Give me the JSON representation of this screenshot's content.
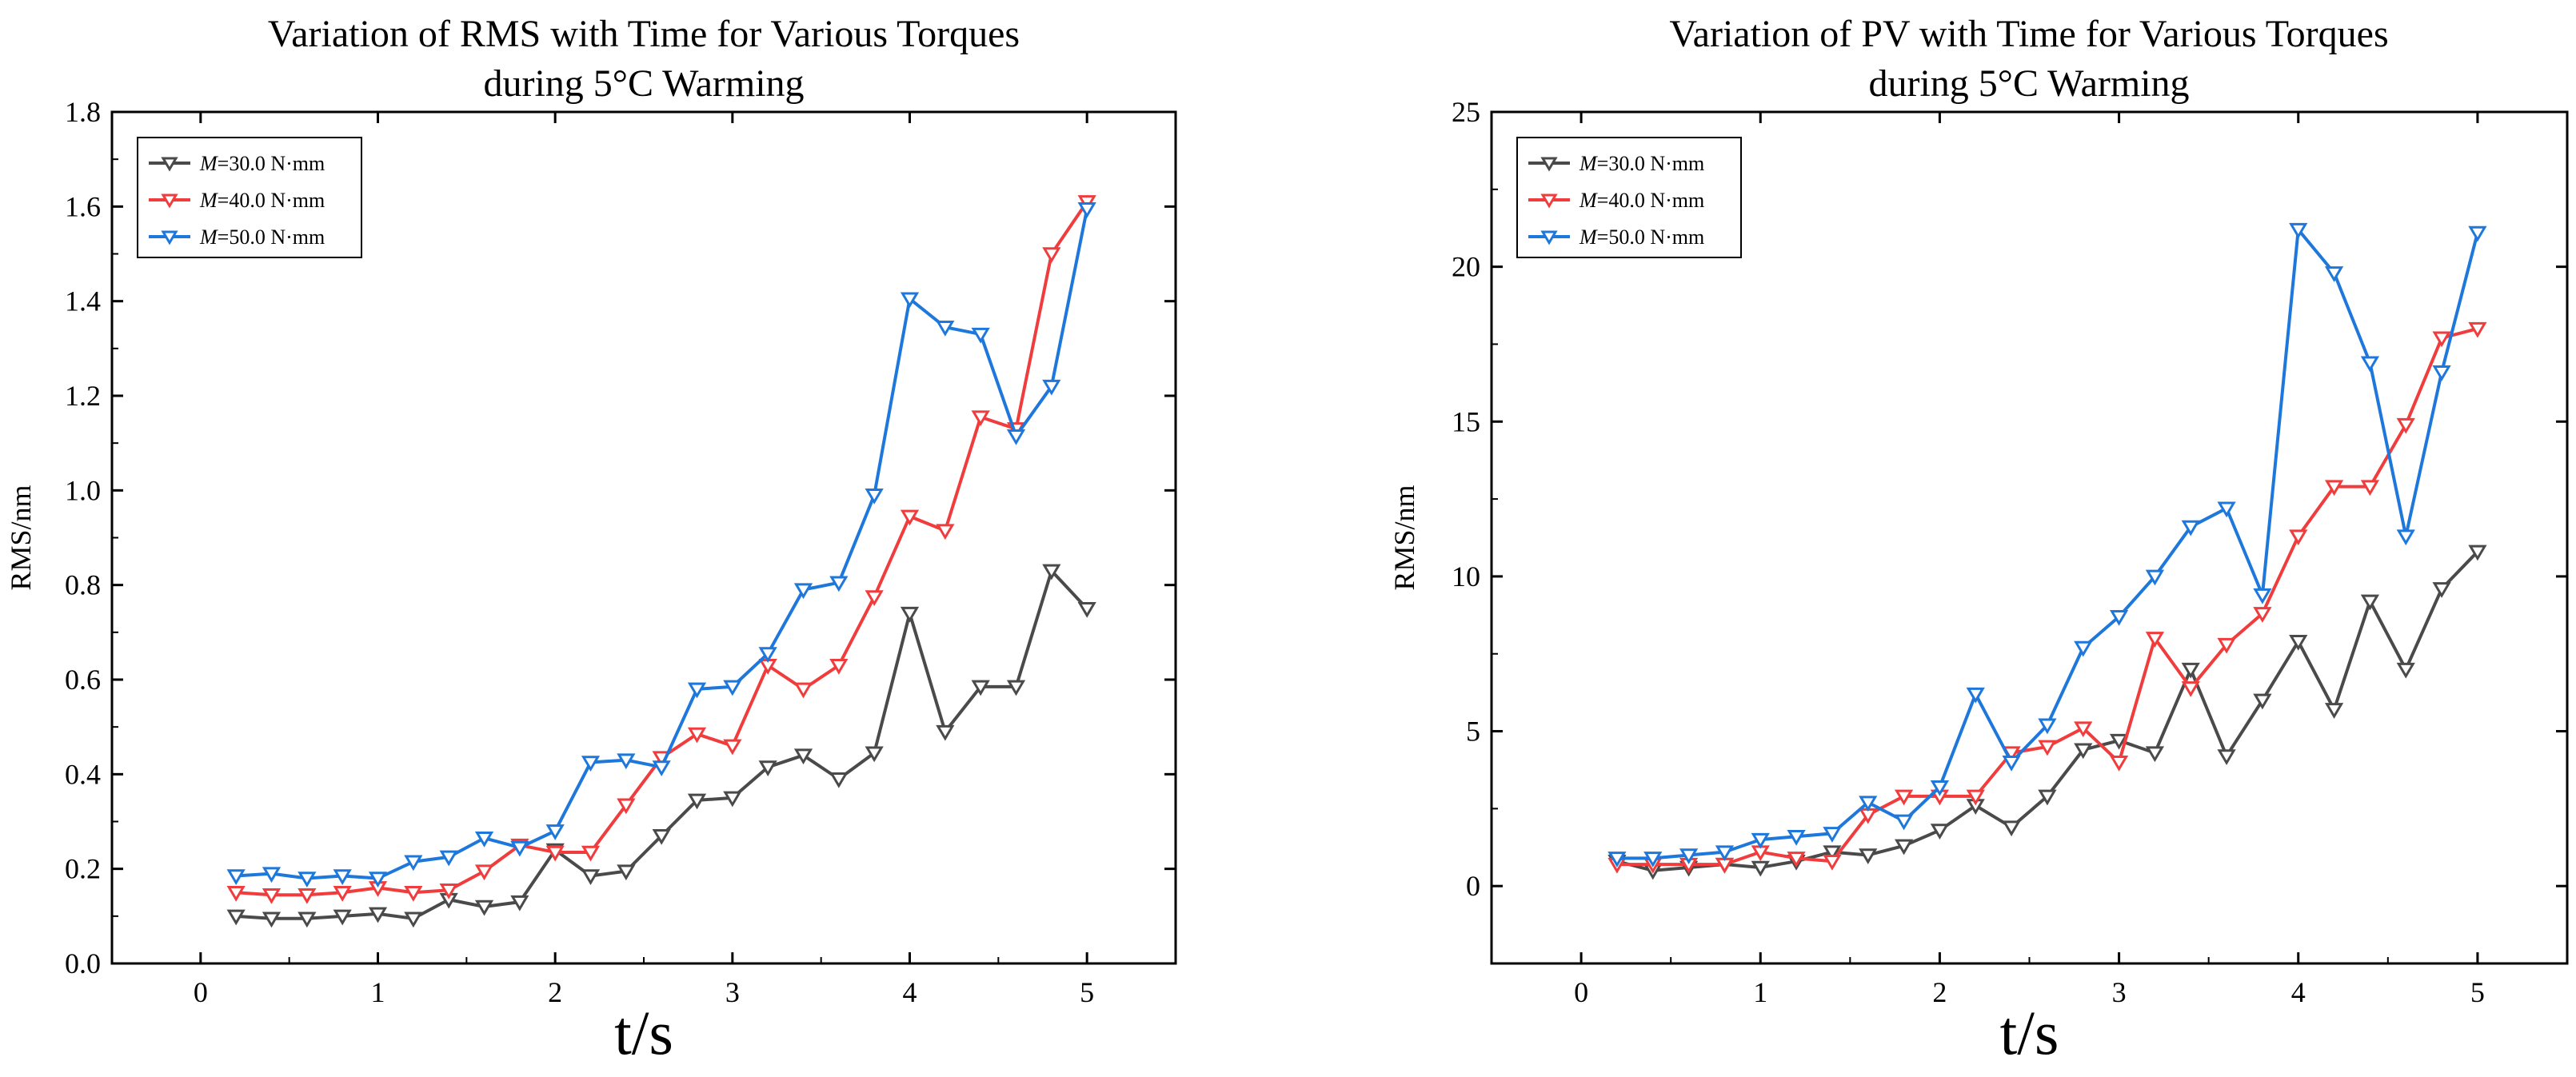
{
  "chart_data": [
    {
      "type": "line",
      "title": "Variation of RMS with Time for Various Torques",
      "subtitle": "during 5°C Warming",
      "xlabel": "t/s",
      "ylabel": "RMS/nm",
      "xlim": [
        -0.5,
        5.5
      ],
      "ylim": [
        0.0,
        1.8
      ],
      "xticks": [
        "0",
        "1",
        "2",
        "3",
        "4",
        "5"
      ],
      "yticks": [
        "0.0",
        "0.2",
        "0.4",
        "0.6",
        "0.8",
        "1.0",
        "1.2",
        "1.4",
        "1.6",
        "1.8"
      ],
      "legend_position": "top-left",
      "grid": false,
      "x": [
        0.2,
        0.4,
        0.6,
        0.8,
        1.0,
        1.2,
        1.4,
        1.6,
        1.8,
        2.0,
        2.2,
        2.4,
        2.6,
        2.8,
        3.0,
        3.2,
        3.4,
        3.6,
        3.8,
        4.0,
        4.2,
        4.4,
        4.6,
        4.8,
        5.0
      ],
      "series": [
        {
          "name_prefix": "M",
          "name_suffix": "=30.0 N·mm",
          "color": "#4a4a4a",
          "values": [
            0.1,
            0.095,
            0.095,
            0.1,
            0.105,
            0.095,
            0.135,
            0.12,
            0.13,
            0.24,
            0.185,
            0.195,
            0.27,
            0.345,
            0.35,
            0.415,
            0.44,
            0.39,
            0.445,
            0.74,
            0.49,
            0.585,
            0.585,
            0.83,
            0.75
          ]
        },
        {
          "name_prefix": "M",
          "name_suffix": "=40.0 N·mm",
          "color": "#f03c3c",
          "values": [
            0.15,
            0.145,
            0.145,
            0.15,
            0.16,
            0.15,
            0.155,
            0.195,
            0.25,
            0.235,
            0.235,
            0.335,
            0.435,
            0.485,
            0.46,
            0.63,
            0.58,
            0.63,
            0.775,
            0.945,
            0.915,
            1.155,
            1.13,
            1.5,
            1.61
          ]
        },
        {
          "name_prefix": "M",
          "name_suffix": "=50.0 N·mm",
          "color": "#1e78dc",
          "values": [
            0.185,
            0.19,
            0.18,
            0.185,
            0.18,
            0.215,
            0.225,
            0.265,
            0.245,
            0.28,
            0.425,
            0.43,
            0.415,
            0.58,
            0.585,
            0.655,
            0.79,
            0.805,
            0.99,
            1.405,
            1.345,
            1.33,
            1.115,
            1.22,
            1.595
          ]
        }
      ]
    },
    {
      "type": "line",
      "title": "Variation of PV with Time for Various Torques",
      "subtitle": "during 5°C Warming",
      "xlabel": "t/s",
      "ylabel": "RMS/nm",
      "xlim": [
        -0.5,
        5.5
      ],
      "ylim": [
        -2.5,
        25
      ],
      "xticks": [
        "0",
        "1",
        "2",
        "3",
        "4",
        "5"
      ],
      "yticks": [
        "0",
        "5",
        "10",
        "15",
        "20",
        "25"
      ],
      "legend_position": "top-left",
      "grid": false,
      "x": [
        0.2,
        0.4,
        0.6,
        0.8,
        1.0,
        1.2,
        1.4,
        1.6,
        1.8,
        2.0,
        2.2,
        2.4,
        2.6,
        2.8,
        3.0,
        3.2,
        3.4,
        3.6,
        3.8,
        4.0,
        4.2,
        4.4,
        4.6,
        4.8,
        5.0
      ],
      "series": [
        {
          "name_prefix": "M",
          "name_suffix": "=30.0 N·mm",
          "color": "#4a4a4a",
          "values": [
            0.8,
            0.5,
            0.6,
            0.7,
            0.6,
            0.8,
            1.1,
            1.0,
            1.3,
            1.8,
            2.6,
            1.9,
            2.9,
            4.4,
            4.7,
            4.3,
            7.0,
            4.2,
            6.0,
            7.9,
            5.7,
            9.2,
            7.0,
            9.6,
            10.8
          ]
        },
        {
          "name_prefix": "M",
          "name_suffix": "=40.0 N·mm",
          "color": "#f03c3c",
          "values": [
            0.7,
            0.7,
            0.7,
            0.7,
            1.1,
            0.9,
            0.8,
            2.3,
            2.9,
            2.9,
            2.9,
            4.3,
            4.5,
            5.1,
            4.0,
            8.0,
            6.4,
            7.8,
            8.8,
            11.3,
            12.9,
            12.9,
            14.9,
            17.7,
            18.0
          ]
        },
        {
          "name_prefix": "M",
          "name_suffix": "=50.0 N·mm",
          "color": "#1e78dc",
          "values": [
            0.9,
            0.9,
            1.0,
            1.1,
            1.5,
            1.6,
            1.7,
            2.7,
            2.1,
            3.2,
            6.2,
            4.0,
            5.2,
            7.7,
            8.7,
            10.0,
            11.6,
            12.2,
            9.4,
            21.2,
            19.8,
            16.9,
            11.3,
            16.6,
            21.1
          ]
        }
      ]
    }
  ]
}
